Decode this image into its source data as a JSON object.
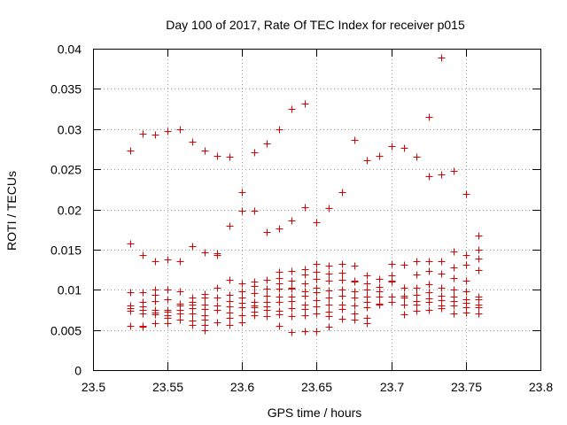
{
  "chart_data": {
    "type": "scatter",
    "title": "Day 100 of 2017, Rate Of TEC Index for receiver p015",
    "xlabel": "GPS time / hours",
    "ylabel": "ROTI / TECUs",
    "xlim": [
      23.5,
      23.8
    ],
    "ylim": [
      0,
      0.04
    ],
    "grid": true,
    "marker": "+",
    "color": "#e00000",
    "x_ticks": [
      "23.5",
      "23.55",
      "23.6",
      "23.65",
      "23.7",
      "23.75",
      "23.8"
    ],
    "y_ticks": [
      "0",
      "0.005",
      "0.01",
      "0.015",
      "0.02",
      "0.025",
      "0.03",
      "0.035",
      "0.04"
    ],
    "series": [
      {
        "name": "ROTI",
        "points": [
          [
            23.525,
            0.0273
          ],
          [
            23.525,
            0.0158
          ],
          [
            23.525,
            0.0097
          ],
          [
            23.525,
            0.008
          ],
          [
            23.525,
            0.0077
          ],
          [
            23.525,
            0.0074
          ],
          [
            23.525,
            0.0055
          ],
          [
            23.5333,
            0.0294
          ],
          [
            23.5333,
            0.0143
          ],
          [
            23.5333,
            0.0097
          ],
          [
            23.5333,
            0.0085
          ],
          [
            23.5333,
            0.0079
          ],
          [
            23.5333,
            0.0075
          ],
          [
            23.5333,
            0.007
          ],
          [
            23.5333,
            0.0055
          ],
          [
            23.5333,
            0.0054
          ],
          [
            23.5417,
            0.0293
          ],
          [
            23.5417,
            0.0136
          ],
          [
            23.5417,
            0.01
          ],
          [
            23.5417,
            0.0094
          ],
          [
            23.5417,
            0.0086
          ],
          [
            23.5417,
            0.0075
          ],
          [
            23.5417,
            0.0072
          ],
          [
            23.5417,
            0.0069
          ],
          [
            23.5417,
            0.0058
          ],
          [
            23.55,
            0.0298
          ],
          [
            23.55,
            0.0138
          ],
          [
            23.55,
            0.01
          ],
          [
            23.55,
            0.0088
          ],
          [
            23.55,
            0.0075
          ],
          [
            23.55,
            0.0073
          ],
          [
            23.55,
            0.0068
          ],
          [
            23.55,
            0.0065
          ],
          [
            23.55,
            0.0058
          ],
          [
            23.5583,
            0.03
          ],
          [
            23.5583,
            0.0135
          ],
          [
            23.5583,
            0.0098
          ],
          [
            23.5583,
            0.0083
          ],
          [
            23.5583,
            0.008
          ],
          [
            23.5583,
            0.0075
          ],
          [
            23.5583,
            0.007
          ],
          [
            23.5583,
            0.0063
          ],
          [
            23.5667,
            0.0284
          ],
          [
            23.5667,
            0.0154
          ],
          [
            23.5667,
            0.009
          ],
          [
            23.5667,
            0.0085
          ],
          [
            23.5667,
            0.0081
          ],
          [
            23.5667,
            0.0077
          ],
          [
            23.5667,
            0.0071
          ],
          [
            23.5667,
            0.0062
          ],
          [
            23.5667,
            0.0056
          ],
          [
            23.575,
            0.0273
          ],
          [
            23.575,
            0.0147
          ],
          [
            23.575,
            0.0095
          ],
          [
            23.575,
            0.009
          ],
          [
            23.575,
            0.0082
          ],
          [
            23.575,
            0.0076
          ],
          [
            23.575,
            0.0068
          ],
          [
            23.575,
            0.0063
          ],
          [
            23.575,
            0.0056
          ],
          [
            23.575,
            0.005
          ],
          [
            23.5833,
            0.0267
          ],
          [
            23.5833,
            0.0145
          ],
          [
            23.5833,
            0.0143
          ],
          [
            23.5833,
            0.0103
          ],
          [
            23.5833,
            0.009
          ],
          [
            23.5833,
            0.008
          ],
          [
            23.5833,
            0.0075
          ],
          [
            23.5833,
            0.006
          ],
          [
            23.5917,
            0.0266
          ],
          [
            23.5917,
            0.018
          ],
          [
            23.5917,
            0.0112
          ],
          [
            23.5917,
            0.0094
          ],
          [
            23.5917,
            0.0086
          ],
          [
            23.5917,
            0.0079
          ],
          [
            23.5917,
            0.0072
          ],
          [
            23.5917,
            0.0065
          ],
          [
            23.5917,
            0.0056
          ],
          [
            23.6,
            0.0221
          ],
          [
            23.6,
            0.0198
          ],
          [
            23.6,
            0.0108
          ],
          [
            23.6,
            0.0098
          ],
          [
            23.6,
            0.009
          ],
          [
            23.6,
            0.0084
          ],
          [
            23.6,
            0.0078
          ],
          [
            23.6,
            0.0068
          ],
          [
            23.6,
            0.006
          ],
          [
            23.6083,
            0.0271
          ],
          [
            23.6083,
            0.0198
          ],
          [
            23.6083,
            0.011
          ],
          [
            23.6083,
            0.0105
          ],
          [
            23.6083,
            0.0096
          ],
          [
            23.6083,
            0.0085
          ],
          [
            23.6083,
            0.008
          ],
          [
            23.6083,
            0.0078
          ],
          [
            23.6083,
            0.0073
          ],
          [
            23.6083,
            0.0068
          ],
          [
            23.6167,
            0.0282
          ],
          [
            23.6167,
            0.0172
          ],
          [
            23.6167,
            0.0112
          ],
          [
            23.6167,
            0.0101
          ],
          [
            23.6167,
            0.0093
          ],
          [
            23.6167,
            0.0085
          ],
          [
            23.6167,
            0.0079
          ],
          [
            23.6167,
            0.0075
          ],
          [
            23.6167,
            0.0067
          ],
          [
            23.625,
            0.03
          ],
          [
            23.625,
            0.0176
          ],
          [
            23.625,
            0.0122
          ],
          [
            23.625,
            0.0115
          ],
          [
            23.625,
            0.0108
          ],
          [
            23.625,
            0.0101
          ],
          [
            23.625,
            0.0092
          ],
          [
            23.625,
            0.0085
          ],
          [
            23.625,
            0.0074
          ],
          [
            23.625,
            0.0069
          ],
          [
            23.625,
            0.0055
          ],
          [
            23.6333,
            0.0325
          ],
          [
            23.6333,
            0.0186
          ],
          [
            23.6333,
            0.0123
          ],
          [
            23.6333,
            0.0111
          ],
          [
            23.6333,
            0.0103
          ],
          [
            23.6333,
            0.0101
          ],
          [
            23.6333,
            0.0091
          ],
          [
            23.6333,
            0.0086
          ],
          [
            23.6333,
            0.0077
          ],
          [
            23.6333,
            0.0067
          ],
          [
            23.6333,
            0.0047
          ],
          [
            23.6417,
            0.0332
          ],
          [
            23.6417,
            0.0203
          ],
          [
            23.6417,
            0.0126
          ],
          [
            23.6417,
            0.0119
          ],
          [
            23.6417,
            0.0108
          ],
          [
            23.6417,
            0.0098
          ],
          [
            23.6417,
            0.0093
          ],
          [
            23.6417,
            0.0082
          ],
          [
            23.6417,
            0.0076
          ],
          [
            23.6417,
            0.0068
          ],
          [
            23.6417,
            0.0048
          ],
          [
            23.65,
            0.0184
          ],
          [
            23.65,
            0.0132
          ],
          [
            23.65,
            0.0122
          ],
          [
            23.65,
            0.0113
          ],
          [
            23.65,
            0.0103
          ],
          [
            23.65,
            0.0097
          ],
          [
            23.65,
            0.0087
          ],
          [
            23.65,
            0.0079
          ],
          [
            23.65,
            0.0071
          ],
          [
            23.65,
            0.0048
          ],
          [
            23.6583,
            0.0202
          ],
          [
            23.6583,
            0.013
          ],
          [
            23.6583,
            0.012
          ],
          [
            23.6583,
            0.0111
          ],
          [
            23.6583,
            0.0099
          ],
          [
            23.6583,
            0.009
          ],
          [
            23.6583,
            0.0082
          ],
          [
            23.6583,
            0.0073
          ],
          [
            23.6583,
            0.0067
          ],
          [
            23.6583,
            0.0054
          ],
          [
            23.6667,
            0.0222
          ],
          [
            23.6667,
            0.0132
          ],
          [
            23.6667,
            0.0121
          ],
          [
            23.6667,
            0.0112
          ],
          [
            23.6667,
            0.01
          ],
          [
            23.6667,
            0.0093
          ],
          [
            23.6667,
            0.0082
          ],
          [
            23.6667,
            0.0076
          ],
          [
            23.6667,
            0.0064
          ],
          [
            23.675,
            0.0286
          ],
          [
            23.675,
            0.013
          ],
          [
            23.675,
            0.0111
          ],
          [
            23.675,
            0.011
          ],
          [
            23.675,
            0.0098
          ],
          [
            23.675,
            0.009
          ],
          [
            23.675,
            0.008
          ],
          [
            23.675,
            0.007
          ],
          [
            23.675,
            0.0063
          ],
          [
            23.6833,
            0.0261
          ],
          [
            23.6833,
            0.0118
          ],
          [
            23.6833,
            0.0108
          ],
          [
            23.6833,
            0.01
          ],
          [
            23.6833,
            0.0092
          ],
          [
            23.6833,
            0.0085
          ],
          [
            23.6833,
            0.0078
          ],
          [
            23.6833,
            0.0065
          ],
          [
            23.6833,
            0.0058
          ],
          [
            23.6917,
            0.0267
          ],
          [
            23.6917,
            0.0113
          ],
          [
            23.6917,
            0.0104
          ],
          [
            23.6917,
            0.0098
          ],
          [
            23.6917,
            0.0092
          ],
          [
            23.6917,
            0.0083
          ],
          [
            23.6917,
            0.0082
          ],
          [
            23.7,
            0.0279
          ],
          [
            23.7,
            0.0132
          ],
          [
            23.7,
            0.0118
          ],
          [
            23.7,
            0.0111
          ],
          [
            23.7,
            0.011
          ],
          [
            23.7,
            0.0092
          ],
          [
            23.7,
            0.0085
          ],
          [
            23.7083,
            0.0277
          ],
          [
            23.7083,
            0.0131
          ],
          [
            23.7083,
            0.0103
          ],
          [
            23.7083,
            0.0093
          ],
          [
            23.7083,
            0.009
          ],
          [
            23.7083,
            0.0082
          ],
          [
            23.7083,
            0.0069
          ],
          [
            23.7167,
            0.0266
          ],
          [
            23.7167,
            0.0135
          ],
          [
            23.7167,
            0.0119
          ],
          [
            23.7167,
            0.0103
          ],
          [
            23.7167,
            0.0094
          ],
          [
            23.7167,
            0.0086
          ],
          [
            23.7167,
            0.0082
          ],
          [
            23.7167,
            0.0074
          ],
          [
            23.725,
            0.0315
          ],
          [
            23.725,
            0.0241
          ],
          [
            23.725,
            0.0135
          ],
          [
            23.725,
            0.0123
          ],
          [
            23.725,
            0.0107
          ],
          [
            23.725,
            0.0097
          ],
          [
            23.725,
            0.0089
          ],
          [
            23.725,
            0.0085
          ],
          [
            23.725,
            0.0075
          ],
          [
            23.7333,
            0.0389
          ],
          [
            23.7333,
            0.0243
          ],
          [
            23.7333,
            0.0135
          ],
          [
            23.7333,
            0.012
          ],
          [
            23.7333,
            0.0102
          ],
          [
            23.7333,
            0.0093
          ],
          [
            23.7333,
            0.0087
          ],
          [
            23.7333,
            0.008
          ],
          [
            23.7333,
            0.0077
          ],
          [
            23.7417,
            0.0248
          ],
          [
            23.7417,
            0.0148
          ],
          [
            23.7417,
            0.0128
          ],
          [
            23.7417,
            0.0115
          ],
          [
            23.7417,
            0.01
          ],
          [
            23.7417,
            0.0092
          ],
          [
            23.7417,
            0.0086
          ],
          [
            23.7417,
            0.008
          ],
          [
            23.7417,
            0.0071
          ],
          [
            23.75,
            0.0219
          ],
          [
            23.75,
            0.0143
          ],
          [
            23.75,
            0.0131
          ],
          [
            23.75,
            0.0111
          ],
          [
            23.75,
            0.0098
          ],
          [
            23.75,
            0.0088
          ],
          [
            23.75,
            0.0084
          ],
          [
            23.75,
            0.0078
          ],
          [
            23.75,
            0.0072
          ],
          [
            23.7583,
            0.0167
          ],
          [
            23.7583,
            0.015
          ],
          [
            23.7583,
            0.0139
          ],
          [
            23.7583,
            0.0124
          ],
          [
            23.7583,
            0.0092
          ],
          [
            23.7583,
            0.0088
          ],
          [
            23.7583,
            0.0082
          ],
          [
            23.7583,
            0.0078
          ],
          [
            23.7583,
            0.0071
          ]
        ]
      }
    ]
  }
}
